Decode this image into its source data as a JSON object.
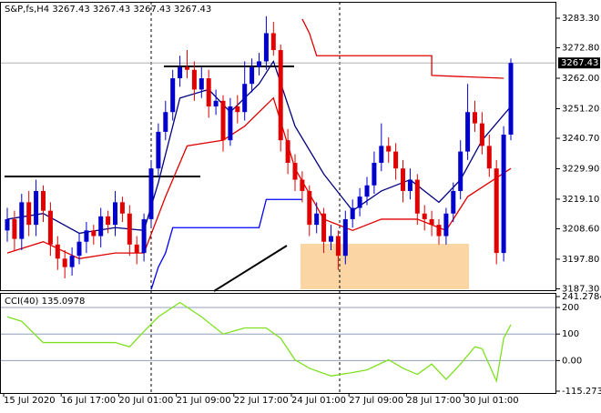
{
  "chart_data": [
    {
      "type": "candlestick",
      "title": "S&P,fs,H4  3267.43 3267.43 3267.43 3267.43",
      "up_color": "#0000cd",
      "down_color": "#e00000",
      "x_labels": [
        "15 Jul 2020",
        "16 Jul 17:00",
        "20 Jul 01:00",
        "21 Jul 09:00",
        "22 Jul 17:00",
        "24 Jul 01:00",
        "27 Jul 09:00",
        "28 Jul 17:00",
        "30 Jul 01:00"
      ],
      "open": [
        3208,
        3212,
        3205,
        3218,
        3210,
        3222,
        3215,
        3203,
        3198,
        3195,
        3199,
        3204,
        3208,
        3206,
        3213,
        3210,
        3218,
        3214,
        3203,
        3200,
        3212,
        3230,
        3243,
        3250,
        3262,
        3266,
        3265,
        3258,
        3262,
        3252,
        3254,
        3240,
        3252,
        3250,
        3260,
        3266,
        3268,
        3278,
        3272,
        3240,
        3232,
        3226,
        3222,
        3210,
        3214,
        3204,
        3206,
        3199,
        3212,
        3216,
        3220,
        3224,
        3232,
        3238,
        3236,
        3230,
        3222,
        3226,
        3214,
        3212,
        3210,
        3206,
        3214,
        3222,
        3236,
        3250,
        3246,
        3238,
        3230,
        3200,
        3242
      ],
      "high": [
        3216,
        3215,
        3221,
        3222,
        3226,
        3224,
        3218,
        3206,
        3201,
        3202,
        3207,
        3211,
        3210,
        3216,
        3215,
        3222,
        3220,
        3217,
        3206,
        3214,
        3233,
        3246,
        3254,
        3265,
        3270,
        3272,
        3268,
        3266,
        3265,
        3258,
        3256,
        3255,
        3256,
        3268,
        3269,
        3271,
        3284,
        3282,
        3274,
        3244,
        3235,
        3229,
        3224,
        3218,
        3216,
        3210,
        3208,
        3215,
        3219,
        3223,
        3227,
        3236,
        3246,
        3241,
        3239,
        3233,
        3230,
        3228,
        3217,
        3215,
        3212,
        3216,
        3225,
        3240,
        3260,
        3254,
        3250,
        3242,
        3233,
        3245,
        3269
      ],
      "low": [
        3204,
        3201,
        3201,
        3206,
        3206,
        3211,
        3199,
        3194,
        3191,
        3192,
        3196,
        3200,
        3203,
        3202,
        3207,
        3206,
        3211,
        3199,
        3196,
        3197,
        3209,
        3227,
        3240,
        3247,
        3259,
        3262,
        3254,
        3255,
        3248,
        3249,
        3236,
        3238,
        3246,
        3247,
        3257,
        3263,
        3265,
        3270,
        3236,
        3228,
        3222,
        3218,
        3206,
        3207,
        3200,
        3201,
        3194,
        3196,
        3209,
        3213,
        3217,
        3221,
        3229,
        3232,
        3226,
        3218,
        3219,
        3210,
        3208,
        3206,
        3203,
        3203,
        3211,
        3219,
        3233,
        3243,
        3235,
        3227,
        3196,
        3197,
        3240
      ],
      "close": [
        3212,
        3205,
        3218,
        3210,
        3222,
        3215,
        3203,
        3198,
        3195,
        3199,
        3204,
        3208,
        3206,
        3213,
        3210,
        3218,
        3214,
        3203,
        3200,
        3212,
        3230,
        3243,
        3250,
        3262,
        3266,
        3265,
        3258,
        3262,
        3252,
        3254,
        3240,
        3252,
        3250,
        3260,
        3266,
        3268,
        3278,
        3272,
        3240,
        3232,
        3226,
        3222,
        3210,
        3214,
        3204,
        3206,
        3199,
        3212,
        3216,
        3220,
        3224,
        3232,
        3238,
        3236,
        3230,
        3222,
        3226,
        3214,
        3212,
        3210,
        3206,
        3214,
        3222,
        3236,
        3250,
        3246,
        3238,
        3230,
        3200,
        3242,
        3267.43
      ],
      "lines": [
        {
          "color": "#000080",
          "x": [
            0,
            5,
            10,
            15,
            19,
            21,
            24,
            28,
            31,
            35,
            37,
            40,
            44,
            48,
            52,
            56,
            60,
            63,
            66,
            70
          ],
          "values": [
            3212,
            3214,
            3207,
            3209,
            3208,
            3225,
            3255,
            3258,
            3250,
            3260,
            3268,
            3245,
            3228,
            3215,
            3222,
            3226,
            3218,
            3226,
            3240,
            3252
          ]
        },
        {
          "color": "#e00000",
          "x": [
            0,
            5,
            10,
            15,
            19,
            22,
            25,
            30,
            33,
            37,
            40,
            44,
            48,
            52,
            57,
            61,
            64,
            67,
            70
          ],
          "values": [
            3200,
            3204,
            3198,
            3200,
            3200,
            3220,
            3238,
            3240,
            3245,
            3255,
            3230,
            3212,
            3208,
            3212,
            3212,
            3208,
            3220,
            3225,
            3230
          ]
        },
        {
          "color": "#e00000",
          "x": [
            41,
            42,
            43,
            59,
            59,
            69
          ],
          "values": [
            3283,
            3278,
            3270,
            3270,
            3263,
            3262
          ]
        },
        {
          "color": "#0000ff",
          "x": [
            20,
            21,
            22,
            23,
            35,
            36,
            41
          ],
          "values": [
            3187,
            3195,
            3200,
            3209,
            3209,
            3219,
            3219
          ]
        }
      ],
      "current_price": 3267.43,
      "ylim": [
        3186.8,
        3288.8
      ],
      "yticks": [
        {
          "value": 3283.3,
          "label": "3283.30"
        },
        {
          "value": 3272.8,
          "label": "3272.80"
        },
        {
          "value": 3262,
          "label": "3262.00"
        },
        {
          "value": 3251.2,
          "label": "3251.20"
        },
        {
          "value": 3240.7,
          "label": "3240.70"
        },
        {
          "value": 3229.9,
          "label": "3229.90"
        },
        {
          "value": 3219.1,
          "label": "3219.10"
        },
        {
          "value": 3208.6,
          "label": "3208.60"
        },
        {
          "value": 3197.8,
          "label": "3197.80"
        },
        {
          "value": 3187.3,
          "label": "3187.30"
        }
      ]
    },
    {
      "type": "line",
      "title": "CCI(40) 135.0978",
      "color": "#7fe020",
      "x": [
        0,
        2,
        5,
        15,
        17,
        19,
        21,
        24,
        27,
        30,
        33,
        36,
        38,
        40,
        42,
        45,
        48,
        50,
        53,
        55,
        57,
        59,
        61,
        63,
        65,
        66,
        68,
        69,
        70
      ],
      "values": [
        165,
        148,
        68,
        68,
        52,
        110,
        165,
        219,
        165,
        100,
        123,
        123,
        84,
        3,
        -29,
        -58,
        -45,
        -35,
        3,
        -29,
        -52,
        -13,
        -71,
        -13,
        52,
        45,
        -77,
        84,
        135.0978
      ],
      "ylim": [
        -115.2734,
        241.2784
      ],
      "yticks": [
        241.2784,
        200,
        100,
        {
          "value": 0,
          "label": "0.00"
        },
        -115.2734
      ]
    }
  ]
}
